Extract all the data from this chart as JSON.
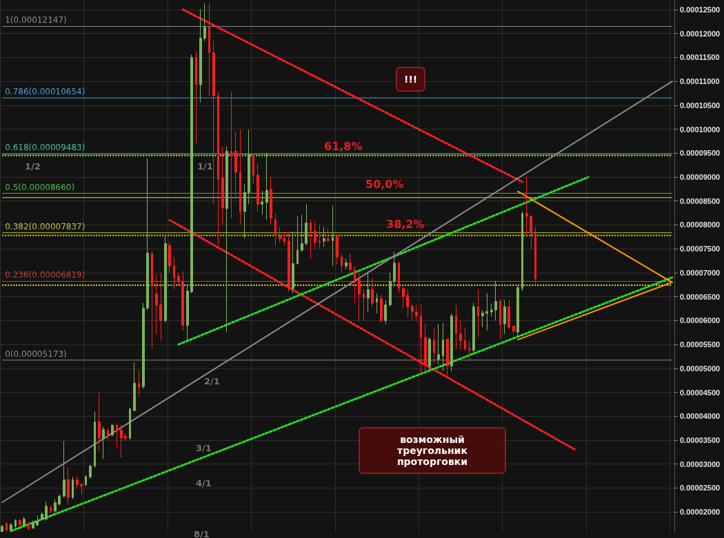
{
  "chart_data": {
    "type": "candlestick",
    "categories": [
      null,
      null,
      null,
      null,
      null,
      null,
      null,
      null,
      null,
      null,
      null,
      null,
      null,
      null,
      null,
      null,
      null,
      null,
      null,
      null,
      null,
      null,
      null,
      null,
      null,
      null,
      null,
      null,
      null,
      null,
      null,
      null,
      null,
      null,
      null,
      null,
      null,
      null,
      null,
      null,
      null,
      null,
      null,
      null,
      null,
      null,
      null,
      null,
      null,
      null,
      null,
      null,
      null,
      null,
      null,
      null,
      null,
      null,
      null,
      null,
      null,
      null,
      null,
      null,
      null,
      null,
      null,
      null,
      null,
      null,
      null,
      null,
      null,
      null,
      null,
      null,
      null,
      null,
      null,
      null,
      null,
      null,
      null,
      null,
      null,
      null,
      null,
      null,
      null,
      null,
      null,
      null,
      null,
      null,
      null,
      null,
      null,
      null,
      null,
      null,
      null,
      null,
      null,
      null,
      null,
      null,
      null,
      null,
      null,
      null,
      null,
      null,
      null,
      null,
      null,
      null,
      null,
      null,
      null,
      null,
      null,
      null,
      null,
      null,
      null,
      null,
      null,
      null,
      null,
      null,
      null,
      null,
      null,
      null,
      null,
      null,
      null,
      null,
      null,
      null,
      null,
      null,
      null,
      null,
      null,
      null,
      null,
      null,
      null,
      null,
      null,
      null,
      null
    ],
    "ohlc": [
      [
        1.59e-05,
        1.73e-05,
        1.59e-05,
        1.7e-05
      ],
      [
        1.76e-05,
        1.79e-05,
        1.59e-05,
        1.62e-05
      ],
      [
        1.62e-05,
        1.77e-05,
        1.6e-05,
        1.73e-05
      ],
      [
        1.7e-05,
        1.85e-05,
        1.67e-05,
        1.82e-05
      ],
      [
        1.82e-05,
        1.85e-05,
        1.7e-05,
        1.73e-05
      ],
      [
        1.72e-05,
        1.9e-05,
        1.69e-05,
        1.85e-05
      ],
      [
        1.76e-05,
        1.8e-05,
        1.62e-05,
        1.65e-05
      ],
      [
        1.66e-05,
        1.82e-05,
        1.65e-05,
        1.77e-05
      ],
      [
        1.73e-05,
        1.92e-05,
        1.7e-05,
        1.8e-05
      ],
      [
        1.85e-05,
        1.99e-05,
        1.82e-05,
        1.95e-05
      ],
      [
        1.85e-05,
        2.22e-05,
        1.82e-05,
        2.12e-05
      ],
      [
        2.09e-05,
        2.14e-05,
        1.97e-05,
        2.02e-05
      ],
      [
        2.02e-05,
        2.27e-05,
        1.99e-05,
        2.19e-05
      ],
      [
        2.16e-05,
        2.36e-05,
        2.14e-05,
        2.33e-05
      ],
      [
        2.33e-05,
        3.48e-05,
        2.3e-05,
        2.67e-05
      ],
      [
        2.67e-05,
        2.93e-05,
        2.16e-05,
        2.3e-05
      ],
      [
        2.3e-05,
        2.73e-05,
        2.27e-05,
        2.67e-05
      ],
      [
        2.67e-05,
        2.74e-05,
        2.5e-05,
        2.57e-05
      ],
      [
        2.57e-05,
        2.6e-05,
        2.36e-05,
        2.54e-05
      ],
      [
        2.57e-05,
        2.77e-05,
        2.54e-05,
        2.74e-05
      ],
      [
        2.73e-05,
        2.98e-05,
        2.7e-05,
        2.96e-05
      ],
      [
        2.96e-05,
        4.1e-05,
        2.93e-05,
        3.88e-05
      ],
      [
        3.88e-05,
        4.49e-05,
        3.27e-05,
        3.54e-05
      ],
      [
        3.54e-05,
        3.78e-05,
        3.11e-05,
        3.72e-05
      ],
      [
        3.7e-05,
        3.75e-05,
        3.51e-05,
        3.61e-05
      ],
      [
        3.61e-05,
        3.85e-05,
        3.58e-05,
        3.81e-05
      ],
      [
        3.81e-05,
        3.85e-05,
        3.33e-05,
        3.7e-05
      ],
      [
        3.71e-05,
        3.82e-05,
        3.13e-05,
        3.55e-05
      ],
      [
        3.58e-05,
        3.64e-05,
        3.48e-05,
        3.54e-05
      ],
      [
        3.54e-05,
        4.18e-05,
        3.51e-05,
        4.15e-05
      ],
      [
        4.12e-05,
        5.12e-05,
        4.1e-05,
        4.69e-05
      ],
      [
        4.69e-05,
        4.96e-05,
        4.41e-05,
        4.61e-05
      ],
      [
        4.62e-05,
        6.37e-05,
        4.58e-05,
        6.26e-05
      ],
      [
        6.26e-05,
        9.39e-05,
        6.22e-05,
        7.41e-05
      ],
      [
        7.39e-05,
        7.44e-05,
        5.41e-05,
        6.72e-05
      ],
      [
        6.56e-05,
        6.96e-05,
        5.72e-05,
        6.32e-05
      ],
      [
        6.33e-05,
        7e-05,
        5.58e-05,
        6e-05
      ],
      [
        6e-05,
        7.78e-05,
        5.96e-05,
        7.61e-05
      ],
      [
        7.57e-05,
        7.64e-05,
        7e-05,
        7.14e-05
      ],
      [
        7.14e-05,
        7.33e-05,
        6.65e-05,
        6.89e-05
      ],
      [
        6.93e-05,
        7e-05,
        6.74e-05,
        6.83e-05
      ],
      [
        6.82e-05,
        7.03e-05,
        5.79e-05,
        5.9e-05
      ],
      [
        5.9e-05,
        6.72e-05,
        5.58e-05,
        6.62e-05
      ],
      [
        6.6e-05,
        0.0001156,
        6.57e-05,
        0.000115
      ],
      [
        0.000115,
        0.0001163,
        9.71e-05,
        0.0001093
      ],
      [
        0.0001093,
        0.0001251,
        0.0001056,
        0.000119
      ],
      [
        0.000119,
        0.0001263,
        0.0001184,
        0.0001213
      ],
      [
        0.0001213,
        0.0001263,
        0.000107,
        0.000116
      ],
      [
        0.000116,
        0.0001184,
        8.43e-05,
        0.000107
      ],
      [
        0.000107,
        0.0001078,
        7.57e-05,
        8.95e-05
      ],
      [
        8.98e-05,
        9.64e-05,
        8e-05,
        8.35e-05
      ],
      [
        8.34e-05,
        9.64e-05,
        5.76e-05,
        9.54e-05
      ],
      [
        9.54e-05,
        0.0001078,
        8.14e-05,
        9.45e-05
      ],
      [
        9.54e-05,
        9.95e-05,
        8.57e-05,
        9.1e-05
      ],
      [
        9.1e-05,
        9.99e-05,
        8e-05,
        8.27e-05
      ],
      [
        8.28e-05,
        8.85e-05,
        7.71e-05,
        8.68e-05
      ],
      [
        8.68e-05,
        9.99e-05,
        8.43e-05,
        9.47e-05
      ],
      [
        9.47e-05,
        9.49e-05,
        8.85e-05,
        9.04e-05
      ],
      [
        9.04e-05,
        9.28e-05,
        8.28e-05,
        8.43e-05
      ],
      [
        8.43e-05,
        8.71e-05,
        8.21e-05,
        8.48e-05
      ],
      [
        8.47e-05,
        9.51e-05,
        8.11e-05,
        8.72e-05
      ],
      [
        8.74e-05,
        9.01e-05,
        8e-05,
        8.14e-05
      ],
      [
        8.11e-05,
        8.24e-05,
        7.57e-05,
        7.78e-05
      ],
      [
        7.78e-05,
        7.96e-05,
        7.64e-05,
        7.71e-05
      ],
      [
        7.71e-05,
        7.86e-05,
        7.57e-05,
        7.66e-05
      ],
      [
        7.66e-05,
        7.86e-05,
        6.6e-05,
        6.67e-05
      ],
      [
        6.67e-05,
        7.86e-05,
        6.57e-05,
        7.19e-05
      ],
      [
        7.19e-05,
        8.18e-05,
        7.17e-05,
        7.47e-05
      ],
      [
        7.47e-05,
        8.21e-05,
        7.43e-05,
        7.61e-05
      ],
      [
        7.61e-05,
        8.43e-05,
        7.57e-05,
        8.04e-05
      ],
      [
        8.04e-05,
        8.11e-05,
        7.29e-05,
        7.87e-05
      ],
      [
        7.87e-05,
        8.08e-05,
        7.49e-05,
        7.64e-05
      ],
      [
        7.66e-05,
        8e-05,
        7.51e-05,
        7.63e-05
      ],
      [
        7.66e-05,
        7.96e-05,
        7.54e-05,
        7.71e-05
      ],
      [
        7.71e-05,
        7.93e-05,
        7.64e-05,
        7.67e-05
      ],
      [
        7.67e-05,
        8.4e-05,
        7.14e-05,
        7.74e-05
      ],
      [
        7.76e-05,
        7.8e-05,
        7.17e-05,
        7.33e-05
      ],
      [
        7.33e-05,
        7.4e-05,
        7e-05,
        7.14e-05
      ],
      [
        7.14e-05,
        7.29e-05,
        7.07e-05,
        7.21e-05
      ],
      [
        7.21e-05,
        7.4e-05,
        6.96e-05,
        7.07e-05
      ],
      [
        7.06e-05,
        7.14e-05,
        6.36e-05,
        6.86e-05
      ],
      [
        6.86e-05,
        7e-05,
        6e-05,
        6.55e-05
      ],
      [
        6.55e-05,
        6.65e-05,
        6e-05,
        6.47e-05
      ],
      [
        6.47e-05,
        7e-05,
        6.18e-05,
        6.65e-05
      ],
      [
        6.65e-05,
        6.89e-05,
        6.29e-05,
        6.36e-05
      ],
      [
        6.39e-05,
        6.57e-05,
        6.15e-05,
        6.46e-05
      ],
      [
        6.46e-05,
        6.53e-05,
        5.96e-05,
        6e-05
      ],
      [
        6e-05,
        6.43e-05,
        5.93e-05,
        6.33e-05
      ],
      [
        6.33e-05,
        7e-05,
        6.29e-05,
        6.82e-05
      ],
      [
        6.82e-05,
        7.44e-05,
        6.72e-05,
        7.2e-05
      ],
      [
        7.2e-05,
        7.24e-05,
        6.57e-05,
        6.67e-05
      ],
      [
        6.67e-05,
        6.72e-05,
        6.26e-05,
        6.5e-05
      ],
      [
        6.53e-05,
        6.65e-05,
        6.06e-05,
        6.29e-05
      ],
      [
        6.3e-05,
        6.33e-05,
        6e-05,
        6.19e-05
      ],
      [
        6.18e-05,
        6.33e-05,
        5.98e-05,
        6.1e-05
      ],
      [
        6.1e-05,
        6.35e-05,
        4.84e-05,
        5.65e-05
      ],
      [
        5.65e-05,
        5.93e-05,
        4.92e-05,
        5.08e-05
      ],
      [
        5.05e-05,
        5.65e-05,
        4.94e-05,
        5.61e-05
      ],
      [
        5.59e-05,
        5.85e-05,
        5.11e-05,
        5.33e-05
      ],
      [
        5.19e-05,
        5.93e-05,
        5.08e-05,
        5.29e-05
      ],
      [
        5.26e-05,
        5.95e-05,
        4.94e-05,
        5.59e-05
      ],
      [
        5.61e-05,
        5.62e-05,
        4.79e-05,
        5.05e-05
      ],
      [
        5.05e-05,
        6.15e-05,
        4.94e-05,
        6.1e-05
      ],
      [
        6.1e-05,
        6.33e-05,
        5.39e-05,
        5.73e-05
      ],
      [
        5.72e-05,
        6e-05,
        5.39e-05,
        5.58e-05
      ],
      [
        5.58e-05,
        5.85e-05,
        5.36e-05,
        5.41e-05
      ],
      [
        5.41e-05,
        5.58e-05,
        5.15e-05,
        5.39e-05
      ],
      [
        5.38e-05,
        6.37e-05,
        5.32e-05,
        6.29e-05
      ],
      [
        6.29e-05,
        6.65e-05,
        5.65e-05,
        6.1e-05
      ],
      [
        6.1e-05,
        6.22e-05,
        5.86e-05,
        6.16e-05
      ],
      [
        6.15e-05,
        6.57e-05,
        5.79e-05,
        6.19e-05
      ],
      [
        6.18e-05,
        6.36e-05,
        6.08e-05,
        6.22e-05
      ],
      [
        6.22e-05,
        6.83e-05,
        6e-05,
        6.4e-05
      ],
      [
        6.4e-05,
        6.46e-05,
        5.61e-05,
        5.92e-05
      ],
      [
        5.93e-05,
        6.43e-05,
        5.72e-05,
        6.29e-05
      ],
      [
        6.29e-05,
        6.43e-05,
        5.83e-05,
        5.86e-05
      ],
      [
        5.88e-05,
        5.89e-05,
        5.72e-05,
        5.78e-05
      ],
      [
        5.76e-05,
        6.72e-05,
        5.68e-05,
        6.69e-05
      ],
      [
        6.67e-05,
        8.28e-05,
        6.62e-05,
        8.24e-05
      ],
      [
        8.24e-05,
        9.01e-05,
        7.78e-05,
        8.18e-05
      ],
      [
        8.18e-05,
        8.21e-05,
        7.5e-05,
        7.83e-05
      ],
      [
        7.83e-05,
        7.96e-05,
        6.74e-05,
        6.87e-05
      ],
      null,
      null,
      null,
      null,
      null,
      null,
      null,
      null,
      null,
      null,
      null,
      null,
      null,
      null,
      null,
      null,
      null,
      null,
      null,
      null,
      null,
      null,
      null,
      null,
      null,
      null,
      null,
      null,
      null,
      null,
      null
    ],
    "series": [
      {
        "type": "line",
        "color": "#ff2020",
        "line_style": "dotted",
        "values": [
          null,
          null,
          null,
          null,
          null,
          null,
          null,
          null,
          null,
          null,
          null,
          null,
          null,
          null,
          null,
          null,
          null,
          null,
          null,
          null,
          null,
          null,
          null,
          null,
          null,
          null,
          null,
          null,
          null,
          null,
          null,
          null,
          null,
          null,
          null,
          null,
          null,
          null,
          null,
          null,
          null,
          0.000125,
          null,
          null,
          null,
          null,
          null,
          null,
          null,
          null,
          null,
          null,
          null,
          null,
          null,
          null,
          null,
          null,
          null,
          null,
          null,
          null,
          null,
          null,
          null,
          null,
          null,
          null,
          null,
          null,
          null,
          null,
          null,
          null,
          null,
          null,
          null,
          null,
          null,
          null,
          null,
          null,
          null,
          null,
          null,
          null,
          null,
          null,
          null,
          null,
          null,
          null,
          null,
          null,
          null,
          null,
          null,
          null,
          null,
          null,
          null,
          null,
          null,
          null,
          null,
          null,
          null,
          null,
          null,
          null,
          null,
          null,
          null,
          null,
          null,
          null,
          null,
          null,
          8.9e-05,
          null,
          null,
          null,
          null,
          null,
          null,
          null,
          null,
          null,
          null,
          null,
          null,
          null,
          null,
          null,
          null,
          null,
          null,
          null,
          null,
          null,
          null,
          null,
          null,
          null,
          null,
          null,
          null,
          null,
          null,
          null,
          null,
          null,
          null
        ]
      },
      {
        "type": "line",
        "color": "#ff2020",
        "line_style": "dotted",
        "values": [
          null,
          null,
          null,
          null,
          null,
          null,
          null,
          null,
          null,
          null,
          null,
          null,
          null,
          null,
          null,
          null,
          null,
          null,
          null,
          null,
          null,
          null,
          null,
          null,
          null,
          null,
          null,
          null,
          null,
          null,
          null,
          null,
          null,
          null,
          null,
          null,
          null,
          null,
          8.1e-05,
          null,
          null,
          null,
          null,
          null,
          null,
          null,
          null,
          null,
          null,
          null,
          null,
          null,
          null,
          null,
          null,
          null,
          null,
          null,
          null,
          null,
          null,
          null,
          null,
          null,
          null,
          null,
          null,
          null,
          null,
          null,
          null,
          null,
          null,
          null,
          null,
          null,
          null,
          null,
          null,
          null,
          null,
          null,
          null,
          null,
          null,
          null,
          null,
          null,
          null,
          null,
          null,
          null,
          null,
          null,
          null,
          null,
          null,
          null,
          null,
          null,
          null,
          null,
          null,
          null,
          null,
          null,
          null,
          null,
          null,
          null,
          null,
          null,
          null,
          null,
          null,
          null,
          null,
          null,
          null,
          null,
          null,
          null,
          null,
          null,
          null,
          null,
          null,
          null,
          null,
          null,
          3.3e-05,
          null,
          null,
          null,
          null,
          null,
          null,
          null,
          null,
          null,
          null,
          null,
          null,
          null,
          null,
          null,
          null,
          null,
          null,
          null,
          null,
          null,
          null
        ]
      },
      {
        "type": "line",
        "color": "#22dd22",
        "line_style": "dotted",
        "values": [
          null,
          null,
          null,
          null,
          null,
          null,
          null,
          null,
          null,
          null,
          null,
          null,
          null,
          null,
          null,
          null,
          null,
          null,
          null,
          null,
          null,
          null,
          null,
          null,
          null,
          null,
          null,
          null,
          null,
          null,
          null,
          null,
          null,
          null,
          null,
          null,
          null,
          null,
          null,
          null,
          5.5e-05,
          null,
          null,
          null,
          null,
          null,
          null,
          null,
          null,
          null,
          null,
          null,
          null,
          null,
          null,
          null,
          null,
          null,
          null,
          null,
          null,
          null,
          null,
          null,
          null,
          null,
          null,
          null,
          null,
          null,
          null,
          null,
          null,
          null,
          null,
          null,
          null,
          null,
          null,
          null,
          null,
          null,
          null,
          null,
          null,
          null,
          null,
          null,
          null,
          null,
          null,
          null,
          null,
          null,
          null,
          null,
          null,
          null,
          null,
          null,
          null,
          null,
          null,
          null,
          null,
          null,
          null,
          null,
          null,
          null,
          null,
          null,
          null,
          null,
          null,
          null,
          null,
          null,
          null,
          null,
          null,
          null,
          null,
          null,
          null,
          null,
          null,
          null,
          null,
          null,
          null,
          null,
          null,
          9e-05,
          null,
          null,
          null,
          null,
          null,
          null,
          null,
          null,
          null,
          null,
          null,
          null,
          null,
          null,
          null,
          null,
          null,
          null,
          null
        ]
      },
      {
        "type": "line",
        "color": "#22dd22",
        "line_style": "dotted",
        "values": [
          null,
          null,
          1.6e-05,
          null,
          null,
          null,
          null,
          null,
          null,
          null,
          null,
          null,
          null,
          null,
          null,
          null,
          null,
          null,
          null,
          null,
          null,
          null,
          null,
          null,
          null,
          null,
          null,
          null,
          null,
          null,
          null,
          null,
          null,
          null,
          null,
          null,
          null,
          null,
          null,
          null,
          null,
          null,
          null,
          null,
          null,
          null,
          null,
          null,
          null,
          null,
          null,
          null,
          null,
          null,
          null,
          null,
          null,
          null,
          null,
          null,
          null,
          null,
          null,
          null,
          null,
          null,
          null,
          null,
          null,
          null,
          null,
          null,
          null,
          null,
          null,
          null,
          null,
          null,
          null,
          null,
          null,
          null,
          null,
          null,
          null,
          null,
          null,
          null,
          null,
          null,
          null,
          null,
          null,
          null,
          null,
          null,
          null,
          null,
          null,
          null,
          null,
          null,
          null,
          null,
          null,
          null,
          null,
          null,
          null,
          null,
          null,
          null,
          null,
          null,
          null,
          null,
          null,
          null,
          null,
          null,
          null,
          null,
          null,
          null,
          null,
          null,
          null,
          null,
          null,
          null,
          null,
          null,
          null,
          null,
          null,
          null,
          null,
          null,
          null,
          null,
          null,
          null,
          null,
          null,
          null,
          null,
          null,
          null,
          null,
          null,
          null,
          null,
          6.9e-05
        ]
      },
      {
        "type": "line",
        "color": "#8a8a8a",
        "line_style": "solid",
        "values": [
          2.2e-05,
          null,
          null,
          null,
          null,
          null,
          null,
          null,
          null,
          null,
          null,
          null,
          null,
          null,
          null,
          null,
          null,
          null,
          null,
          null,
          null,
          null,
          null,
          null,
          null,
          null,
          null,
          null,
          null,
          null,
          null,
          null,
          null,
          null,
          null,
          null,
          null,
          null,
          null,
          null,
          null,
          null,
          null,
          null,
          null,
          null,
          null,
          null,
          null,
          null,
          null,
          null,
          null,
          null,
          null,
          null,
          null,
          null,
          null,
          null,
          null,
          null,
          null,
          null,
          null,
          null,
          null,
          null,
          null,
          null,
          null,
          null,
          null,
          null,
          null,
          null,
          null,
          null,
          null,
          null,
          null,
          null,
          null,
          null,
          null,
          null,
          null,
          null,
          null,
          null,
          null,
          null,
          null,
          null,
          null,
          null,
          null,
          null,
          null,
          null,
          null,
          null,
          null,
          null,
          null,
          null,
          null,
          null,
          null,
          null,
          null,
          null,
          null,
          null,
          null,
          null,
          null,
          null,
          null,
          null,
          null,
          null,
          null,
          null,
          null,
          null,
          null,
          null,
          null,
          null,
          null,
          null,
          null,
          null,
          null,
          null,
          null,
          null,
          null,
          null,
          null,
          null,
          null,
          null,
          null,
          null,
          null,
          null,
          null,
          null,
          null,
          null,
          0.00011
        ]
      },
      {
        "type": "line",
        "color": "#ff9900",
        "line_style": "solid",
        "values": [
          null,
          null,
          null,
          null,
          null,
          null,
          null,
          null,
          null,
          null,
          null,
          null,
          null,
          null,
          null,
          null,
          null,
          null,
          null,
          null,
          null,
          null,
          null,
          null,
          null,
          null,
          null,
          null,
          null,
          null,
          null,
          null,
          null,
          null,
          null,
          null,
          null,
          null,
          null,
          null,
          null,
          null,
          null,
          null,
          null,
          null,
          null,
          null,
          null,
          null,
          null,
          null,
          null,
          null,
          null,
          null,
          null,
          null,
          null,
          null,
          null,
          null,
          null,
          null,
          null,
          null,
          null,
          null,
          null,
          null,
          null,
          null,
          null,
          null,
          null,
          null,
          null,
          null,
          null,
          null,
          null,
          null,
          null,
          null,
          null,
          null,
          null,
          null,
          null,
          null,
          null,
          null,
          null,
          null,
          null,
          null,
          null,
          null,
          null,
          null,
          null,
          null,
          null,
          null,
          null,
          null,
          null,
          null,
          null,
          null,
          null,
          null,
          null,
          null,
          null,
          null,
          null,
          8.7e-05,
          null,
          null,
          null,
          null,
          null,
          null,
          null,
          null,
          null,
          null,
          null,
          null,
          null,
          null,
          null,
          null,
          null,
          null,
          null,
          null,
          null,
          null,
          null,
          null,
          null,
          null,
          null,
          null,
          null,
          null,
          null,
          null,
          null,
          null,
          6.8e-05
        ]
      },
      {
        "type": "line",
        "color": "#ff9900",
        "line_style": "solid",
        "values": [
          null,
          null,
          null,
          null,
          null,
          null,
          null,
          null,
          null,
          null,
          null,
          null,
          null,
          null,
          null,
          null,
          null,
          null,
          null,
          null,
          null,
          null,
          null,
          null,
          null,
          null,
          null,
          null,
          null,
          null,
          null,
          null,
          null,
          null,
          null,
          null,
          null,
          null,
          null,
          null,
          null,
          null,
          null,
          null,
          null,
          null,
          null,
          null,
          null,
          null,
          null,
          null,
          null,
          null,
          null,
          null,
          null,
          null,
          null,
          null,
          null,
          null,
          null,
          null,
          null,
          null,
          null,
          null,
          null,
          null,
          null,
          null,
          null,
          null,
          null,
          null,
          null,
          null,
          null,
          null,
          null,
          null,
          null,
          null,
          null,
          null,
          null,
          null,
          null,
          null,
          null,
          null,
          null,
          null,
          null,
          null,
          null,
          null,
          null,
          null,
          null,
          null,
          null,
          null,
          null,
          null,
          null,
          null,
          null,
          null,
          null,
          null,
          null,
          null,
          null,
          null,
          null,
          5.6e-05,
          null,
          null,
          null,
          null,
          null,
          null,
          null,
          null,
          null,
          null,
          null,
          null,
          null,
          null,
          null,
          null,
          null,
          null,
          null,
          null,
          null,
          null,
          null,
          null,
          null,
          null,
          null,
          null,
          null,
          null,
          null,
          null,
          null,
          null,
          6.8e-05
        ]
      }
    ],
    "ylim": [
      1.57e-05,
      0.000127
    ],
    "yticks": [
      {
        "value": 2e-05,
        "label": "0.00002000"
      },
      {
        "value": 2.5e-05,
        "label": "0.00002500"
      },
      {
        "value": 3e-05,
        "label": "0.00003000"
      },
      {
        "value": 3.5e-05,
        "label": "0.00003500"
      },
      {
        "value": 4e-05,
        "label": "0.00004000"
      },
      {
        "value": 4.5e-05,
        "label": "0.00004500"
      },
      {
        "value": 5e-05,
        "label": "0.00005000"
      },
      {
        "value": 5.5e-05,
        "label": "0.00005500"
      },
      {
        "value": 6e-05,
        "label": "0.00006000"
      },
      {
        "value": 6.5e-05,
        "label": "0.00006500"
      },
      {
        "value": 7e-05,
        "label": "0.00007000"
      },
      {
        "value": 7.5e-05,
        "label": "0.00007500"
      },
      {
        "value": 8e-05,
        "label": "0.00008000"
      },
      {
        "value": 8.5e-05,
        "label": "0.00008500"
      },
      {
        "value": 9e-05,
        "label": "0.00009000"
      },
      {
        "value": 9.5e-05,
        "label": "0.00009500"
      },
      {
        "value": 0.0001,
        "label": "0.00010000"
      },
      {
        "value": 0.000105,
        "label": "0.00010500"
      },
      {
        "value": 0.00011,
        "label": "0.00011000"
      },
      {
        "value": 0.000115,
        "label": "0.00011500"
      },
      {
        "value": 0.00012,
        "label": "0.00012000"
      },
      {
        "value": 0.000125,
        "label": "0.00012500"
      }
    ],
    "ref_lines": [
      {
        "axis": "y",
        "value": 0.00012147,
        "label": "1(0.00012147)",
        "color": "#8c8c8c",
        "line_style": "solid"
      },
      {
        "axis": "y",
        "value": 0.00010654,
        "label": "0.786(0.00010654)",
        "color": "#4a9fd4",
        "line_style": "solid"
      },
      {
        "axis": "y",
        "value": 9.483e-05,
        "label": "0.618(0.00009483)",
        "color": "#3fc0a0",
        "line_style": "solid"
      },
      {
        "axis": "y",
        "value": 8.66e-05,
        "label": "0.5(0.00008660)",
        "color": "#4cbb4c",
        "line_style": "solid"
      },
      {
        "axis": "y",
        "value": 7.837e-05,
        "label": "0.382(0.00007837)",
        "color": "#b8c040",
        "line_style": "solid"
      },
      {
        "axis": "y",
        "value": 6.819e-05,
        "label": "0.236(0.00006819)",
        "color": "#c0403a",
        "line_style": "solid"
      },
      {
        "axis": "y",
        "value": 5.173e-05,
        "label": "0(0.00005173)",
        "color": "#8c8c8c",
        "line_style": "solid"
      },
      {
        "axis": "y",
        "value": 9.45e-05,
        "color": "#e8e800",
        "line_style": "dotted"
      },
      {
        "axis": "y",
        "value": 8.57e-05,
        "color": "#e8e800",
        "line_style": "solid"
      },
      {
        "axis": "y",
        "value": 7.78e-05,
        "color": "#e8e800",
        "line_style": "dotted"
      },
      {
        "axis": "y",
        "value": 6.74e-05,
        "color": "#e8e800",
        "line_style": "dotted"
      }
    ],
    "annotations": [
      "61,8%",
      "50,0%",
      "38,2%",
      "!!!",
      "возможный треугольник проторговки",
      "1/2",
      "1/1",
      "2/1",
      "3/1",
      "4/1",
      "8/1"
    ],
    "grid": true,
    "marker": "none"
  }
}
